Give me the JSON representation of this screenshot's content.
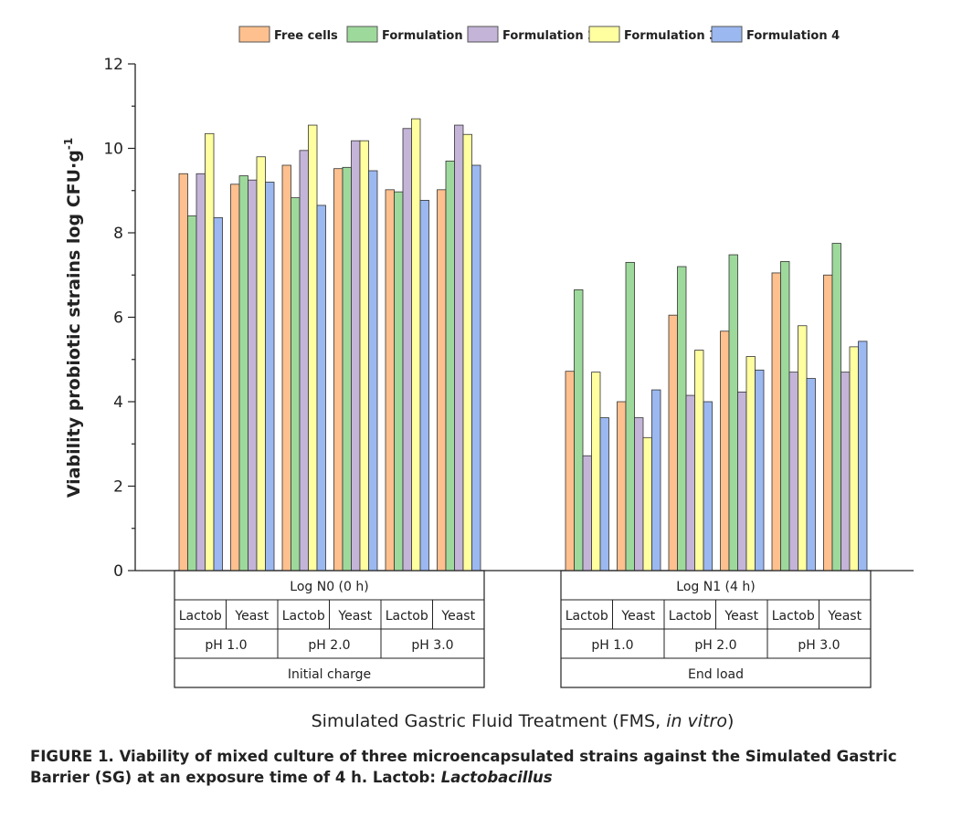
{
  "chart_data": {
    "type": "bar",
    "ylabel": "Viability probiotic strains log CFU·g",
    "ylabel_sup": "-1",
    "xlabel": "Simulated Gastric Fluid Treatment (FMS, ",
    "xlabel_italic": "in vitro",
    "xlabel_end": ")",
    "ylim": [
      0,
      12
    ],
    "yticks": [
      0,
      2,
      4,
      6,
      8,
      10,
      12
    ],
    "legend_position": "top",
    "series_names": [
      "Free cells",
      "Formulation 1",
      "Formulation 2",
      "Formulation 3",
      "Formulation 4"
    ],
    "colors": [
      "#FDC08E",
      "#9ED99C",
      "#C3B4D8",
      "#FFFFA0",
      "#9BB8F0"
    ],
    "groups": [
      {
        "time": "Log N0 (0 h)",
        "load": "Initial charge",
        "ph": [
          "pH 1.0",
          "pH 2.0",
          "pH 3.0"
        ],
        "strains": [
          "Lactob",
          "Yeast",
          "Lactob",
          "Yeast",
          "Lactob",
          "Yeast"
        ],
        "values": [
          [
            9.4,
            8.4,
            9.4,
            10.35,
            8.36
          ],
          [
            9.15,
            9.35,
            9.25,
            9.8,
            9.2
          ],
          [
            9.6,
            8.83,
            9.95,
            10.55,
            8.65
          ],
          [
            9.52,
            9.55,
            10.18,
            10.18,
            9.47
          ],
          [
            9.02,
            8.97,
            10.47,
            10.7,
            8.77
          ],
          [
            9.02,
            9.7,
            10.55,
            10.33,
            9.6
          ]
        ]
      },
      {
        "time": "Log N1 (4 h)",
        "load": "End load",
        "ph": [
          "pH 1.0",
          "pH 2.0",
          "pH 3.0"
        ],
        "strains": [
          "Lactob",
          "Yeast",
          "Lactob",
          "Yeast",
          "Lactob",
          "Yeast"
        ],
        "values": [
          [
            4.72,
            6.65,
            2.72,
            4.7,
            3.62
          ],
          [
            4.0,
            7.3,
            3.62,
            3.15,
            4.28
          ],
          [
            6.05,
            7.2,
            4.15,
            5.22,
            4.0
          ],
          [
            5.67,
            7.48,
            4.23,
            5.07,
            4.75
          ],
          [
            7.05,
            7.32,
            4.7,
            5.8,
            4.55
          ],
          [
            7.0,
            7.75,
            4.7,
            5.3,
            5.43
          ]
        ]
      }
    ]
  },
  "caption": {
    "bold": "FIGURE 1. Viability of mixed culture of three microencapsulated strains against the Simulated Gastric Barrier (SG) at an exposure time of 4 h. Lactob: ",
    "italic": "Lactobacillus"
  }
}
